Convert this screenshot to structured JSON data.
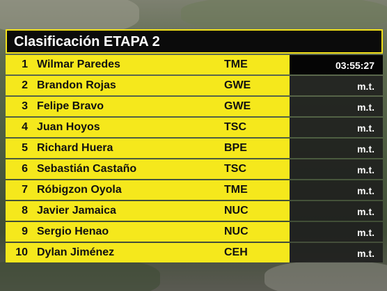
{
  "header": {
    "title": "Clasificación ETAPA 2"
  },
  "table": {
    "rows": [
      [
        "1",
        "Wilmar Paredes",
        "TME",
        "03:55:27"
      ],
      [
        "2",
        "Brandon Rojas",
        "GWE",
        "m.t."
      ],
      [
        "3",
        "Felipe Bravo",
        "GWE",
        "m.t."
      ],
      [
        "4",
        "Juan Hoyos",
        "TSC",
        "m.t."
      ],
      [
        "5",
        "Richard Huera",
        "BPE",
        "m.t."
      ],
      [
        "6",
        "Sebastián Castaño",
        "TSC",
        "m.t."
      ],
      [
        "7",
        "Róbigzon Oyola",
        "TME",
        "m.t."
      ],
      [
        "8",
        "Javier Jamaica",
        "NUC",
        "m.t."
      ],
      [
        "9",
        "Sergio Henao",
        "NUC",
        "m.t."
      ],
      [
        "10",
        "Dylan Jiménez",
        "CEH",
        "m.t."
      ]
    ]
  }
}
